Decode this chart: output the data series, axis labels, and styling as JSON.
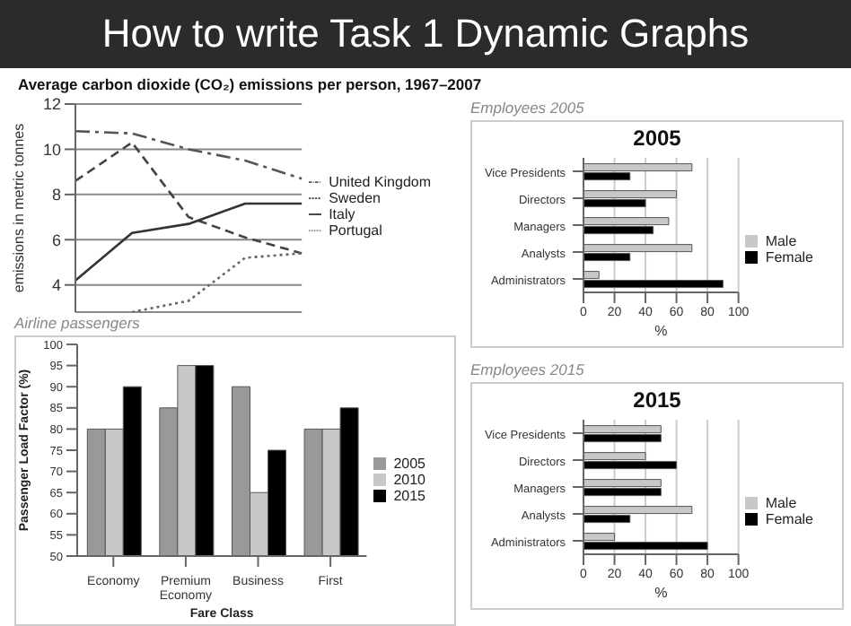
{
  "chart_data": [
    {
      "type": "other",
      "title": "How to write Task 1 Dynamic Graphs"
    },
    {
      "type": "line",
      "title": "Average carbon dioxide (CO₂) emissions per person, 1967–2007",
      "ylabel": "emissions in metric tonnes",
      "categories": [
        null,
        null,
        null,
        null,
        null
      ],
      "ylim": [
        2.8,
        12
      ],
      "yticks": [
        4,
        6,
        8,
        10,
        12
      ],
      "grid": "y",
      "legend": "right",
      "tick_labels": "y",
      "series": [
        {
          "name": "United Kingdom",
          "color": "#555555",
          "line_style": "dashdot",
          "values": [
            10.8,
            10.7,
            10.0,
            9.5,
            8.7
          ]
        },
        {
          "name": "Sweden",
          "color": "#444444",
          "line_style": "dashed",
          "values": [
            8.6,
            10.3,
            7.0,
            6.1,
            5.4
          ]
        },
        {
          "name": "Italy",
          "color": "#333333",
          "line_style": "solid",
          "values": [
            4.2,
            6.3,
            6.7,
            7.6,
            7.6
          ]
        },
        {
          "name": "Portugal",
          "color": "#666666",
          "line_style": "dotted",
          "values": [
            null,
            2.8,
            3.3,
            5.2,
            5.4
          ]
        }
      ]
    },
    {
      "type": "bar",
      "orientation": "horizontal",
      "subtitle": "Employees 2005",
      "title": "2005",
      "xlabel": "%",
      "categories": [
        "Vice Presidents",
        "Directors",
        "Managers",
        "Analysts",
        "Administrators"
      ],
      "xlim": [
        0,
        100
      ],
      "xticks": [
        0,
        20,
        40,
        60,
        80,
        100
      ],
      "grid": "x",
      "legend": "right",
      "series": [
        {
          "name": "Male",
          "color": "#c8c8c8",
          "values": [
            70,
            60,
            55,
            70,
            10
          ]
        },
        {
          "name": "Female",
          "color": "#000000",
          "values": [
            30,
            40,
            45,
            30,
            90
          ]
        }
      ]
    },
    {
      "type": "bar",
      "subtitle": "Airline passengers",
      "xlabel": "Fare Class",
      "ylabel": "Passenger Load Factor (%)",
      "categories": [
        "Economy",
        "Premium Economy",
        "Business",
        "First"
      ],
      "ylim": [
        50,
        100
      ],
      "yticks": [
        50,
        55,
        60,
        65,
        70,
        75,
        80,
        85,
        90,
        95,
        100
      ],
      "legend": "right",
      "series": [
        {
          "name": "2005",
          "color": "#999999",
          "values": [
            80,
            85,
            90,
            80
          ]
        },
        {
          "name": "2010",
          "color": "#c8c8c8",
          "values": [
            80,
            95,
            65,
            80
          ]
        },
        {
          "name": "2015",
          "color": "#000000",
          "values": [
            90,
            95,
            75,
            85
          ]
        }
      ]
    },
    {
      "type": "bar",
      "orientation": "horizontal",
      "subtitle": "Employees 2015",
      "title": "2015",
      "xlabel": "%",
      "categories": [
        "Vice Presidents",
        "Directors",
        "Managers",
        "Analysts",
        "Administrators"
      ],
      "xlim": [
        0,
        100
      ],
      "xticks": [
        0,
        20,
        40,
        60,
        80,
        100
      ],
      "grid": "x",
      "legend": "right",
      "series": [
        {
          "name": "Male",
          "color": "#c8c8c8",
          "values": [
            50,
            40,
            50,
            70,
            20
          ]
        },
        {
          "name": "Female",
          "color": "#000000",
          "values": [
            50,
            60,
            50,
            30,
            80
          ]
        }
      ]
    }
  ]
}
